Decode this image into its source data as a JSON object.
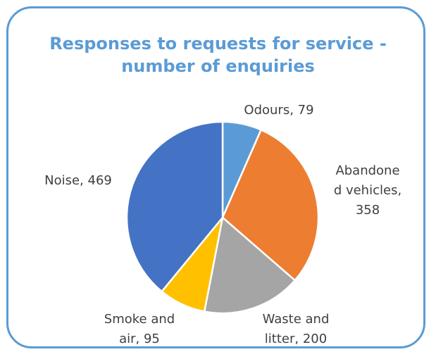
{
  "chart_data": {
    "type": "pie",
    "title_lines": [
      "Responses to requests for service -",
      "number of enquiries"
    ],
    "categories": [
      "Odours",
      "Abandoned vehicles",
      "Waste and litter",
      "Smoke and air",
      "Noise"
    ],
    "values": [
      79,
      358,
      200,
      95,
      469
    ],
    "colors": [
      "#5b9bd5",
      "#ed7d31",
      "#a5a5a5",
      "#ffc000",
      "#4472c4"
    ],
    "legend": "none",
    "labels": [
      {
        "lines": [
          "Odours, 79"
        ]
      },
      {
        "lines": [
          "Abandone",
          "d vehicles,",
          "358"
        ]
      },
      {
        "lines": [
          "Waste and",
          "litter, 200"
        ]
      },
      {
        "lines": [
          "Smoke and",
          "air, 95"
        ]
      },
      {
        "lines": [
          "Noise, 469"
        ]
      }
    ]
  }
}
